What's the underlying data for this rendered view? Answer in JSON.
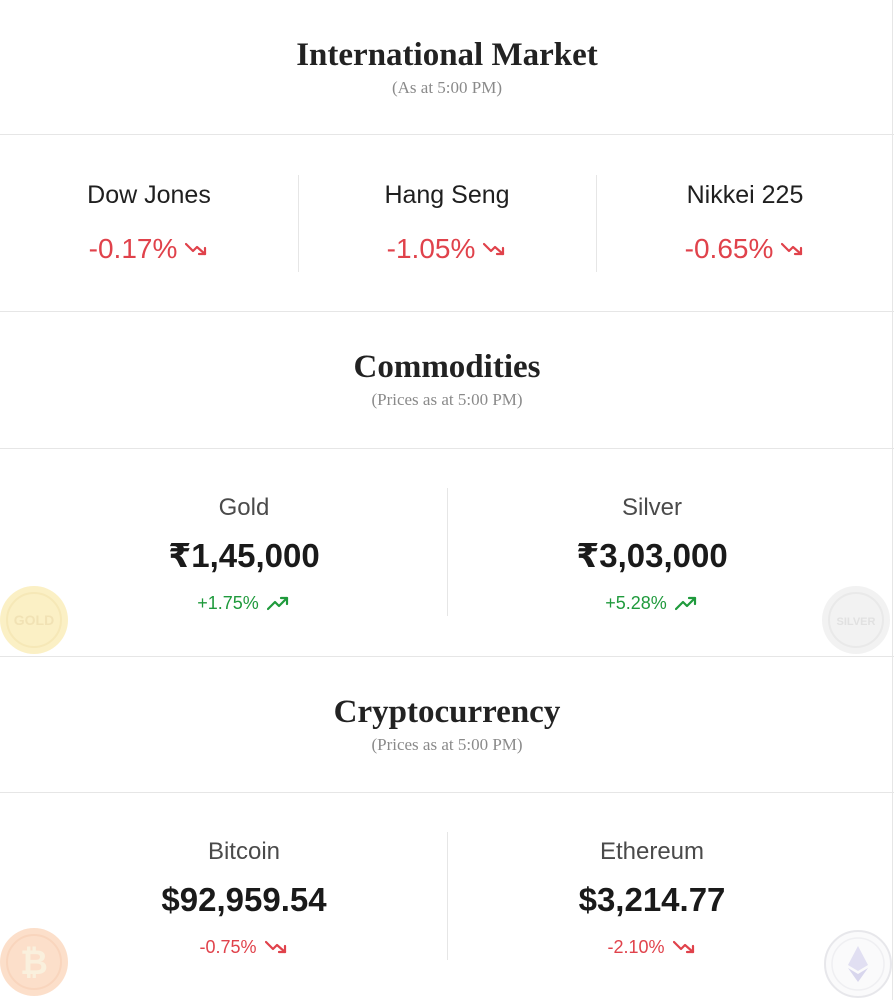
{
  "international": {
    "title": "International Market",
    "subtitle": "(As at 5:00 PM)",
    "indices": [
      {
        "name": "Dow Jones",
        "change": "-0.17%",
        "direction": "down",
        "icon": "trend-down-icon"
      },
      {
        "name": "Hang Seng",
        "change": "-1.05%",
        "direction": "down",
        "icon": "trend-down-icon"
      },
      {
        "name": "Nikkei 225",
        "change": "-0.65%",
        "direction": "down",
        "icon": "trend-down-icon"
      }
    ]
  },
  "commodities": {
    "title": "Commodities",
    "subtitle": "(Prices as at 5:00 PM)",
    "items": [
      {
        "name": "Gold",
        "price": "₹1,45,000",
        "change": "+1.75%",
        "direction": "up",
        "icon": "trend-up-icon",
        "coin_label": "GOLD"
      },
      {
        "name": "Silver",
        "price": "₹3,03,000",
        "change": "+5.28%",
        "direction": "up",
        "icon": "trend-up-icon",
        "coin_label": "SILVER"
      }
    ]
  },
  "crypto": {
    "title": "Cryptocurrency",
    "subtitle": "(Prices as at 5:00 PM)",
    "items": [
      {
        "name": "Bitcoin",
        "price": "$92,959.54",
        "change": "-0.75%",
        "direction": "down",
        "icon": "trend-down-icon",
        "coin_icon": "bitcoin-coin-icon"
      },
      {
        "name": "Ethereum",
        "price": "$3,214.77",
        "change": "-2.10%",
        "direction": "down",
        "icon": "trend-down-icon",
        "coin_icon": "ethereum-coin-icon"
      }
    ]
  },
  "colors": {
    "down": "#e0424b",
    "up": "#1f9a3c",
    "divider": "#e6e6e6"
  }
}
